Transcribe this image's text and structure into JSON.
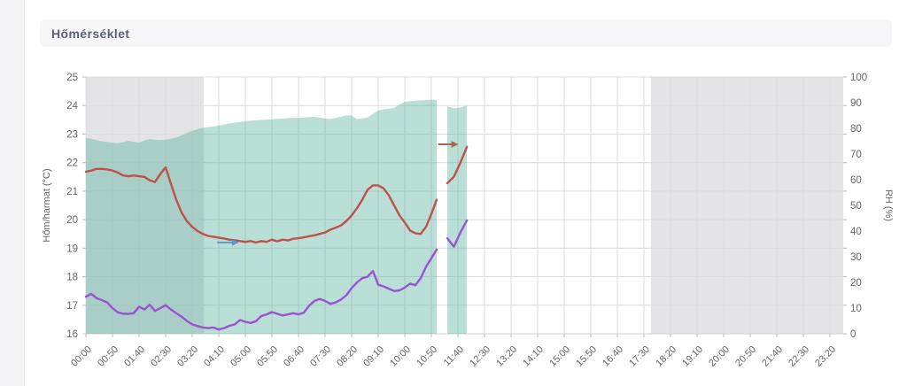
{
  "page": {
    "header": {
      "title": "Hőmérséklet"
    }
  },
  "chart_data": {
    "type": "line",
    "title": "Hőmérséklet",
    "x_axis": {
      "domain_min": 0,
      "domain_max": 1425,
      "tick_interval_min": 50,
      "tick_labels": [
        "00:00",
        "00:50",
        "01:40",
        "02:30",
        "03:20",
        "04:10",
        "05:00",
        "05:50",
        "06:40",
        "07:30",
        "08:20",
        "09:10",
        "10:00",
        "10:50",
        "11:40",
        "12:30",
        "13:20",
        "14:10",
        "15:00",
        "15:50",
        "16:40",
        "17:30",
        "18:20",
        "19:10",
        "20:00",
        "20:50",
        "21:40",
        "22:30",
        "23:20"
      ]
    },
    "left_axis": {
      "label": "Hőm/harmat (°C)",
      "min": 16,
      "max": 25,
      "tick_step": 1
    },
    "right_axis": {
      "label": "RH (%)",
      "min": 0,
      "max": 100,
      "tick_step": 10
    },
    "grid": true,
    "legend": "none",
    "colors": {
      "night_band": "#e4e4e6",
      "gridline": "#dcdcde",
      "tick": "#b9b9bd",
      "axis_text": "#666666",
      "rh_area": "rgba(72,172,150,0.38)",
      "temperature": "#c0504a",
      "dew_point": "#9b51d1",
      "arrow_blue": "#5b9bd5",
      "arrow_brown": "#a9674f"
    },
    "night_bands_min": [
      [
        0,
        222
      ],
      [
        1063,
        1425
      ]
    ],
    "series": [
      {
        "name": "rh-area",
        "kind": "area",
        "axis": "right",
        "color_key": "rh_area",
        "segments": [
          {
            "start_min": 0,
            "step_min": 10,
            "values": [
              76.2,
              75.9,
              75.4,
              75.0,
              74.7,
              74.4,
              74.2,
              74.5,
              75.2,
              74.8,
              74.4,
              75.3,
              75.8,
              75.6,
              75.4,
              75.6,
              75.9,
              76.5,
              77.3,
              78.2,
              79.0,
              79.7,
              80.2,
              80.5,
              80.8,
              81.1,
              81.5,
              81.9,
              82.2,
              82.5,
              82.8,
              83.0,
              83.1,
              83.3,
              83.4,
              83.5,
              83.7,
              83.8,
              84.0,
              84.1,
              84.0,
              84.2,
              84.4,
              84.5,
              84.2,
              83.8,
              83.7,
              84.0,
              84.6,
              85.1,
              85.0,
              83.6,
              83.9,
              84.2,
              85.6,
              87.0,
              87.4,
              87.7,
              88.0,
              89.2,
              90.3,
              90.6,
              90.8,
              90.9,
              91.0,
              91.2,
              91.0
            ]
          },
          {
            "start_min": 680,
            "step_min": 12.3,
            "values": [
              88.6,
              87.8,
              88.1,
              88.9
            ]
          }
        ]
      },
      {
        "name": "temperature",
        "kind": "line",
        "axis": "left",
        "color_key": "temperature",
        "segments": [
          {
            "start_min": 0,
            "step_min": 10,
            "values": [
              21.68,
              21.72,
              21.78,
              21.78,
              21.76,
              21.72,
              21.65,
              21.55,
              21.52,
              21.55,
              21.52,
              21.5,
              21.38,
              21.32,
              21.6,
              21.83,
              21.25,
              20.7,
              20.25,
              19.95,
              19.75,
              19.6,
              19.5,
              19.43,
              19.4,
              19.37,
              19.34,
              19.3,
              19.28,
              19.25,
              19.22,
              19.25,
              19.2,
              19.25,
              19.22,
              19.3,
              19.24,
              19.3,
              19.27,
              19.33,
              19.35,
              19.38,
              19.42,
              19.45,
              19.5,
              19.55,
              19.65,
              19.72,
              19.8,
              19.95,
              20.15,
              20.4,
              20.7,
              21.05,
              21.2,
              21.2,
              21.1,
              20.85,
              20.5,
              20.15,
              19.9,
              19.62,
              19.52,
              19.5,
              19.75,
              20.2,
              20.7
            ]
          },
          {
            "start_min": 680,
            "step_min": 12.3,
            "values": [
              21.28,
              21.5,
              22.0,
              22.55
            ]
          }
        ]
      },
      {
        "name": "dew-point",
        "kind": "line",
        "axis": "left",
        "color_key": "dew_point",
        "segments": [
          {
            "start_min": 0,
            "step_min": 10,
            "values": [
              17.3,
              17.4,
              17.25,
              17.18,
              17.1,
              16.9,
              16.75,
              16.7,
              16.7,
              16.72,
              16.95,
              16.85,
              17.02,
              16.8,
              16.9,
              17.0,
              16.85,
              16.72,
              16.6,
              16.45,
              16.33,
              16.27,
              16.22,
              16.2,
              16.22,
              16.15,
              16.2,
              16.28,
              16.33,
              16.48,
              16.42,
              16.38,
              16.44,
              16.62,
              16.68,
              16.76,
              16.7,
              16.64,
              16.68,
              16.72,
              16.68,
              16.74,
              16.98,
              17.15,
              17.22,
              17.15,
              17.05,
              17.1,
              17.2,
              17.35,
              17.6,
              17.8,
              17.95,
              18.0,
              18.2,
              17.72,
              17.66,
              17.58,
              17.5,
              17.52,
              17.62,
              17.76,
              17.7,
              17.95,
              18.35,
              18.65,
              18.95
            ]
          },
          {
            "start_min": 680,
            "step_min": 12.3,
            "values": [
              19.35,
              19.05,
              19.55,
              19.97
            ]
          }
        ]
      }
    ],
    "annotations": [
      {
        "name": "blue-right-arrow",
        "color_key": "arrow_blue",
        "axis": "left",
        "start_min": 247,
        "end_min": 288,
        "value": 19.2
      },
      {
        "name": "brown-right-arrow",
        "color_key": "arrow_brown",
        "axis": "left",
        "start_min": 663,
        "end_min": 701,
        "value": 22.64
      }
    ]
  }
}
